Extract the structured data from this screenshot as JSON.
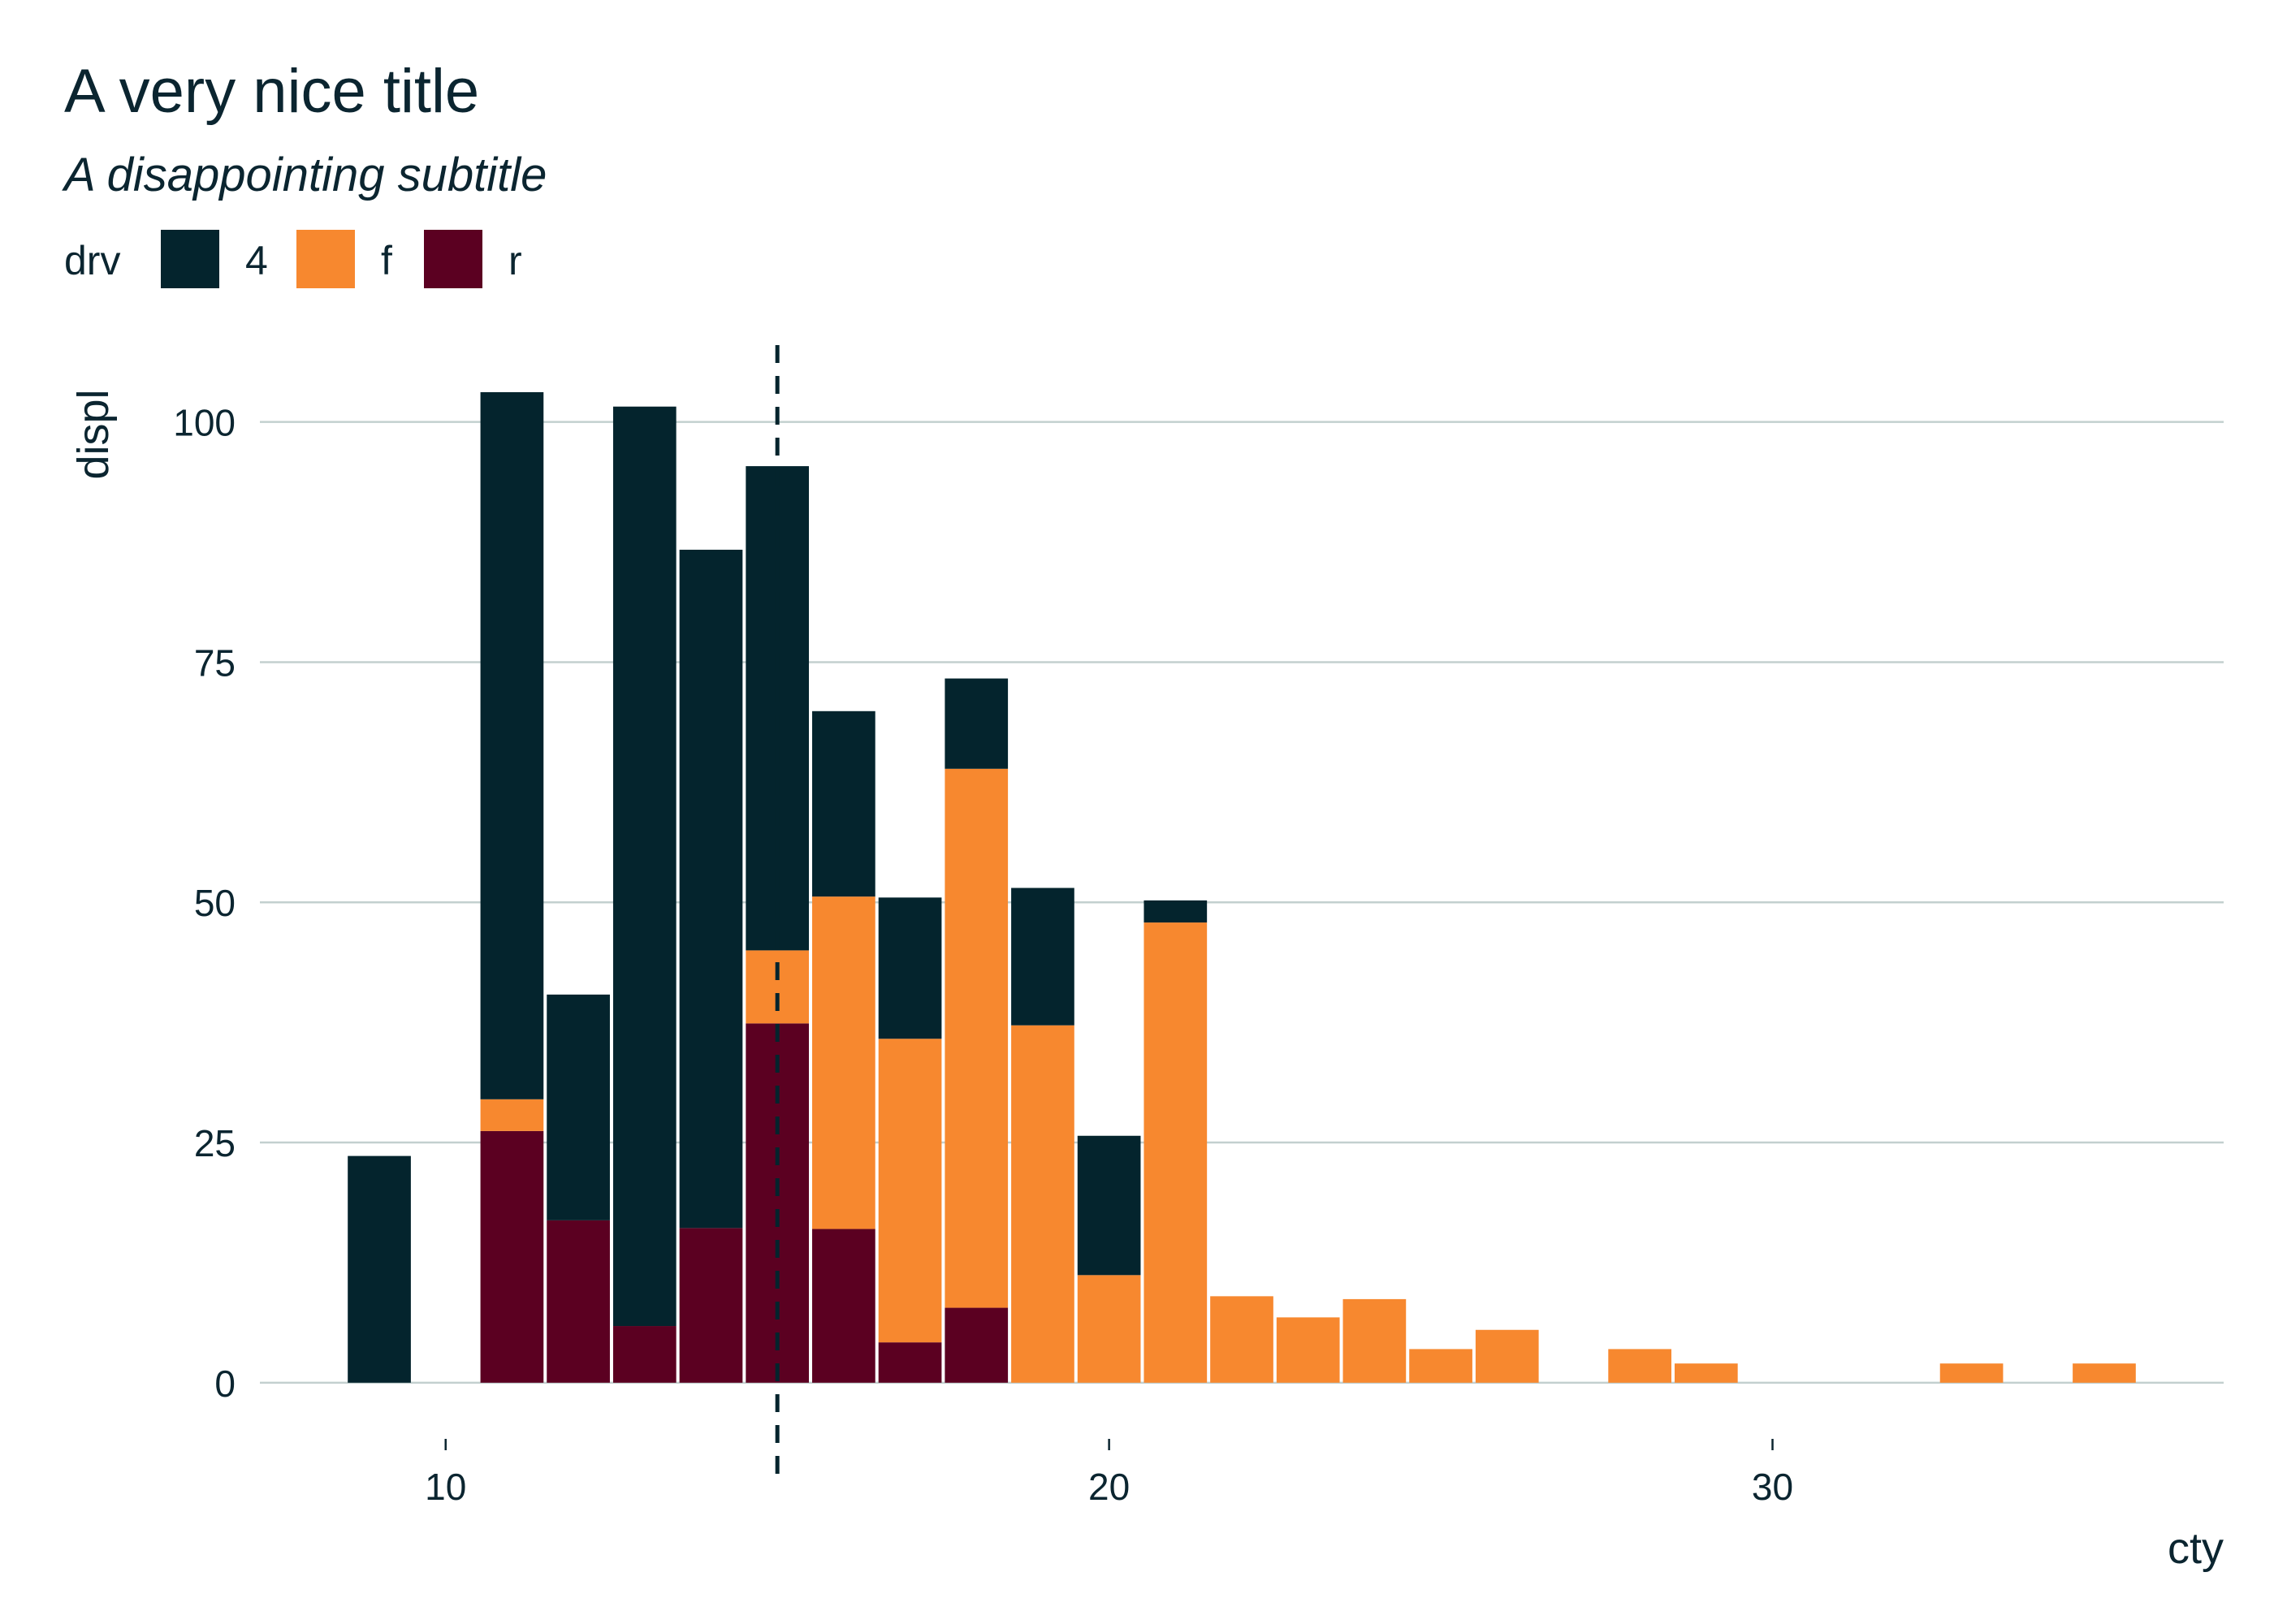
{
  "chart_data": {
    "type": "bar",
    "stacked": true,
    "title": "A very nice title",
    "subtitle": "A disappointing subtitle",
    "xlabel": "cty",
    "ylabel": "displ",
    "xlim": [
      7.2,
      36.8
    ],
    "ylim": [
      -5,
      108
    ],
    "x_ticks": [
      10,
      20,
      30
    ],
    "y_ticks": [
      0,
      25,
      50,
      75,
      100
    ],
    "bin_width": 1,
    "grid": {
      "major_y": true,
      "major_x": false
    },
    "legend": {
      "title": "drv",
      "position": "top-left",
      "entries": [
        {
          "key": "4",
          "label": "4",
          "color": "#04242d"
        },
        {
          "key": "f",
          "label": "f",
          "color": "#f7882f"
        },
        {
          "key": "r",
          "label": "r",
          "color": "#5b0021"
        }
      ]
    },
    "reference_line": {
      "axis": "x",
      "value": 15,
      "style": "dashed",
      "color": "#04242d"
    },
    "stack_order_bottom_to_top": [
      "r",
      "f",
      "4"
    ],
    "x": [
      9,
      11,
      12,
      13,
      14,
      15,
      16,
      17,
      18,
      19,
      20,
      21,
      22,
      23,
      24,
      25,
      26,
      28,
      29,
      33,
      35
    ],
    "series": [
      {
        "name": "r",
        "values": [
          0,
          26.2,
          16.9,
          5.9,
          16.1,
          37.4,
          16.0,
          4.2,
          7.8,
          0,
          0,
          0,
          0,
          0,
          0,
          0,
          0,
          0,
          0,
          0,
          0
        ]
      },
      {
        "name": "f",
        "values": [
          0,
          3.3,
          0,
          0,
          0,
          7.6,
          34.6,
          31.6,
          56.1,
          37.2,
          11.2,
          47.9,
          9.0,
          6.8,
          8.7,
          3.5,
          5.5,
          3.5,
          2.0,
          2.0,
          2.0
        ]
      },
      {
        "name": "4",
        "values": [
          23.6,
          73.6,
          23.5,
          95.7,
          70.6,
          50.4,
          19.3,
          14.7,
          9.4,
          14.3,
          14.5,
          2.3,
          0,
          0,
          0,
          0,
          0,
          0,
          0,
          0,
          0
        ]
      }
    ]
  }
}
